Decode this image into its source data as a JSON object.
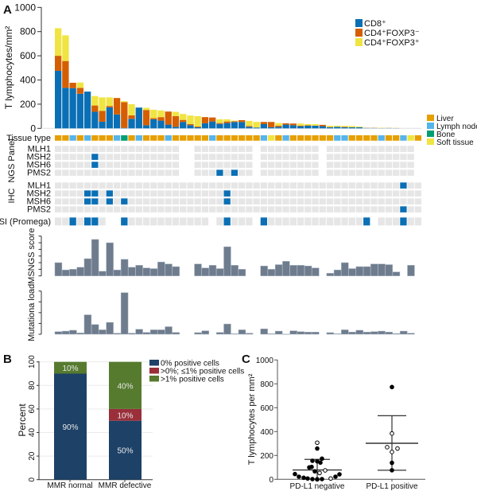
{
  "panel_a": {
    "letter": "A",
    "y_label": "T lymphocytes/mm²",
    "y_ticks": [
      0,
      200,
      400,
      600,
      800,
      1000
    ],
    "ylim": [
      0,
      1000
    ],
    "legend": [
      {
        "key": "cd8",
        "label": "CD8⁺",
        "color": "#0a6fb5"
      },
      {
        "key": "cd4_foxp3_neg",
        "label": "CD4⁺FOXP3⁻",
        "color": "#d55e00"
      },
      {
        "key": "cd4_foxp3_pos",
        "label": "CD4⁺FOXP3⁺",
        "color": "#f0e442"
      }
    ],
    "cd8": [
      476,
      335,
      333,
      286,
      304,
      137,
      55,
      174,
      115,
      4,
      79,
      172,
      26,
      75,
      64,
      31,
      13,
      53,
      26,
      9,
      42,
      57,
      37,
      44,
      53,
      53,
      13,
      7,
      35,
      9,
      13,
      31,
      26,
      18,
      22,
      22,
      18,
      9,
      13,
      9,
      9,
      9,
      4,
      3,
      2,
      3,
      2,
      0,
      0,
      0
    ],
    "cd4_foxp3_neg": [
      124,
      222,
      44,
      49,
      0,
      52,
      90,
      11,
      136,
      212,
      29,
      0,
      126,
      9,
      29,
      108,
      88,
      17,
      9,
      6,
      51,
      33,
      7,
      13,
      6,
      15,
      7,
      0,
      18,
      44,
      9,
      11,
      14,
      4,
      3,
      0,
      11,
      2,
      0,
      4,
      0,
      0,
      2,
      3,
      1,
      1,
      1,
      0,
      0,
      0
    ],
    "cd4_foxp3_pos": [
      228,
      212,
      0,
      44,
      0,
      78,
      111,
      71,
      0,
      9,
      92,
      0,
      18,
      70,
      55,
      0,
      36,
      49,
      71,
      86,
      0,
      0,
      31,
      18,
      5,
      0,
      42,
      46,
      0,
      0,
      22,
      0,
      0,
      18,
      10,
      13,
      0,
      11,
      9,
      7,
      11,
      6,
      2,
      2,
      4,
      3,
      2,
      0,
      0,
      0
    ],
    "tissue_label": "Tissue type",
    "tissue_legend": [
      {
        "key": "liver",
        "label": "Liver",
        "color": "#e69f00"
      },
      {
        "key": "lymph_node",
        "label": "Lymph node",
        "color": "#56b4e9"
      },
      {
        "key": "bone",
        "label": "Bone",
        "color": "#009e73"
      },
      {
        "key": "soft_tissue",
        "label": "Soft tissue",
        "color": "#f0e442"
      }
    ],
    "tissue": [
      "liver",
      "liver",
      "lymph_node",
      "liver",
      "lymph_node",
      "liver",
      "liver",
      "liver",
      "lymph_node",
      "bone",
      "liver",
      "lymph_node",
      "liver",
      "liver",
      "liver",
      "lymph_node",
      "liver",
      "liver",
      "liver",
      "liver",
      "liver",
      "lymph_node",
      "liver",
      "liver",
      "liver",
      "liver",
      "liver",
      "liver",
      "lymph_node",
      "soft_tissue",
      "liver",
      "lymph_node",
      "liver",
      "liver",
      "liver",
      "liver",
      "liver",
      "liver",
      "lymph_node",
      "lymph_node",
      "liver",
      "liver",
      "liver",
      "liver",
      "lymph_node",
      "liver",
      "liver",
      "lymph_node",
      "soft_tissue",
      "liver"
    ],
    "status_colors": {
      "normal": "#e6e6e6",
      "deficient": "#0a6fb5"
    },
    "ngs_panel": {
      "group_label": "NGS Panel",
      "not_tested_columns": [
        17,
        18,
        27,
        36,
        49
      ],
      "rows": [
        {
          "gene": "MLH1",
          "deficient_columns": []
        },
        {
          "gene": "MSH2",
          "deficient_columns": [
            5
          ]
        },
        {
          "gene": "MSH6",
          "deficient_columns": [
            5
          ]
        },
        {
          "gene": "PMS2",
          "deficient_columns": [
            22,
            24
          ]
        }
      ]
    },
    "ihc": {
      "group_label": "IHC",
      "not_tested_columns": [],
      "rows": [
        {
          "gene": "MLH1",
          "deficient_columns": [
            47
          ]
        },
        {
          "gene": "MSH2",
          "deficient_columns": [
            4,
            5,
            7,
            23
          ]
        },
        {
          "gene": "MSH6",
          "deficient_columns": [
            4,
            5,
            7,
            9,
            23
          ]
        },
        {
          "gene": "PMS2",
          "deficient_columns": [
            47
          ]
        }
      ]
    },
    "msi": {
      "label": "MSI (Promega)",
      "not_tested_columns": [
        7,
        8,
        21,
        27,
        43
      ],
      "positive_columns": [
        2,
        4,
        5,
        9,
        23,
        28,
        42,
        47
      ]
    },
    "msngs": {
      "label": "MSNGS score",
      "ylim": [
        0,
        6
      ],
      "bar_color": "#6e7c8e",
      "values": [
        2.0,
        0.9,
        1.0,
        1.3,
        2.6,
        5.5,
        0.7,
        5.0,
        0.9,
        2.5,
        1.3,
        1.6,
        1.2,
        1.1,
        2.1,
        1.8,
        1.4,
        null,
        null,
        1.8,
        1.2,
        1.6,
        1.1,
        4.4,
        1.6,
        1.0,
        null,
        null,
        1.5,
        1.0,
        1.7,
        2.2,
        1.6,
        1.6,
        1.5,
        1.2,
        null,
        0.4,
        0.9,
        2.0,
        1.1,
        1.4,
        1.4,
        1.8,
        1.8,
        1.7,
        0.6,
        null,
        1.6,
        null
      ]
    },
    "mutational_load": {
      "label": "Mutationa load",
      "ylim": [
        0,
        4
      ],
      "values": [
        0.24,
        0.29,
        0.37,
        0.12,
        1.8,
        0.9,
        0.41,
        1.1,
        0.1,
        3.85,
        0.1,
        0.46,
        0.17,
        0.41,
        0.41,
        0.7,
        0.17,
        null,
        null,
        0.15,
        0.32,
        null,
        0.17,
        0.95,
        0.05,
        0.41,
        0.1,
        null,
        0.5,
        0.05,
        0.29,
        0.02,
        0.32,
        0.24,
        0.2,
        0.2,
        null,
        0.15,
        0.05,
        0.41,
        0.2,
        0.37,
        0.2,
        0.24,
        0.29,
        0.2,
        0.07,
        0.29,
        0.1,
        null
      ]
    }
  },
  "chart_data": [
    {
      "type": "bar",
      "stacked": true,
      "panel": "B",
      "ylabel": "Percent",
      "ylim": [
        0,
        100
      ],
      "y_ticks": [
        0,
        20,
        40,
        60,
        80,
        100
      ],
      "grid": true,
      "legend_position": "right",
      "categories": [
        "MMR normal",
        "MMR defective"
      ],
      "series": [
        {
          "name": "0% positive cells",
          "color": "#1d4167",
          "values": [
            90,
            50
          ],
          "labels": [
            "90%",
            "50%"
          ]
        },
        {
          "name": ">0%; ≤1% positive cells",
          "color": "#9a2f3a",
          "values": [
            0,
            10
          ],
          "labels": [
            "",
            "10%"
          ]
        },
        {
          "name": ">1% positive cells",
          "color": "#567b2f",
          "values": [
            10,
            40
          ],
          "labels": [
            "10%",
            "40%"
          ]
        }
      ]
    },
    {
      "type": "scatter",
      "panel": "C",
      "ylabel": "T lymphocytes per mm²",
      "ylim": [
        0,
        1000
      ],
      "y_ticks": [
        0,
        200,
        400,
        600,
        800,
        1000
      ],
      "categories": [
        "PD-L1 negative",
        "PD-L1 positive"
      ],
      "groups": [
        {
          "category": "PD-L1 negative",
          "mean": 78,
          "upper": 167,
          "lower": 0,
          "points": [
            {
              "y": 44,
              "filled": true
            },
            {
              "y": 22,
              "filled": true
            },
            {
              "y": 13,
              "filled": true
            },
            {
              "y": 7,
              "filled": true
            },
            {
              "y": 2,
              "filled": true
            },
            {
              "y": 0,
              "filled": false
            },
            {
              "y": 0,
              "filled": true
            },
            {
              "y": 2,
              "filled": true
            },
            {
              "y": 7,
              "filled": false
            },
            {
              "y": 22,
              "filled": true
            },
            {
              "y": 42,
              "filled": true
            },
            {
              "y": 100,
              "filled": true
            },
            {
              "y": 104,
              "filled": true
            },
            {
              "y": 155,
              "filled": true
            },
            {
              "y": 151,
              "filled": true
            },
            {
              "y": 140,
              "filled": true
            },
            {
              "y": 173,
              "filled": true
            },
            {
              "y": 67,
              "filled": true
            },
            {
              "y": 53,
              "filled": false
            },
            {
              "y": 75,
              "filled": false
            },
            {
              "y": 258,
              "filled": true
            },
            {
              "y": 307,
              "filled": false
            }
          ]
        },
        {
          "category": "PD-L1 positive",
          "mean": 302,
          "upper": 533,
          "lower": 76,
          "points": [
            {
              "y": 773,
              "filled": true
            },
            {
              "y": 384,
              "filled": false
            },
            {
              "y": 269,
              "filled": false
            },
            {
              "y": 258,
              "filled": false
            },
            {
              "y": 229,
              "filled": false
            },
            {
              "y": 138,
              "filled": true
            },
            {
              "y": 76,
              "filled": true
            }
          ]
        }
      ]
    }
  ],
  "panel_b": {
    "letter": "B"
  },
  "panel_c": {
    "letter": "C"
  }
}
